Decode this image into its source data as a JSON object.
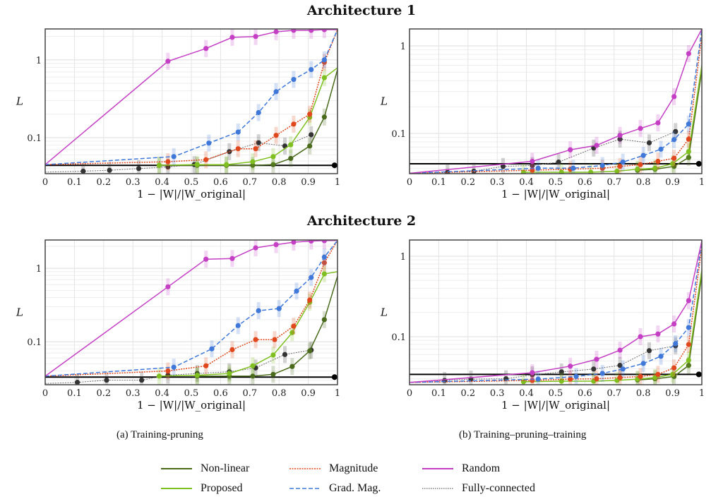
{
  "figure": {
    "row_titles": [
      "Architecture 1",
      "Architecture 2"
    ],
    "captions": [
      "(a) Training-pruning",
      "(b) Training–pruning–training"
    ],
    "legend": [
      {
        "name": "Non-linear",
        "color": "#4a6b1c",
        "dash": "solid"
      },
      {
        "name": "Magnitude",
        "color": "#e0471c",
        "dash": "dotted"
      },
      {
        "name": "Random",
        "color": "#c43fc4",
        "dash": "solid"
      },
      {
        "name": "Proposed",
        "color": "#7fbf1f",
        "dash": "solid"
      },
      {
        "name": "Grad. Mag.",
        "color": "#3f78d8",
        "dash": "dashed"
      },
      {
        "name": "Fully-connected",
        "color": "#333333",
        "dash": "dotted"
      }
    ],
    "baseline_color": "#000000"
  },
  "chart_data": [
    {
      "id": "arch1-training-pruning",
      "type": "line",
      "title": "Architecture 1 – (a) Training-pruning",
      "xlabel": "1 − |W|/|W_original|",
      "ylabel": "L",
      "xlim": [
        0,
        1
      ],
      "ylim": [
        0.0344,
        2.5
      ],
      "yscale": "log",
      "xticks": [
        "0",
        "0.1",
        "0.2",
        "0.3",
        "0.4",
        "0.5",
        "0.6",
        "0.7",
        "0.8",
        "0.9",
        "1"
      ],
      "yticks": [
        "0.1",
        "1"
      ],
      "grid": true,
      "baseline": 0.044,
      "series": [
        {
          "name": "Random",
          "x": [
            0,
            0.42,
            0.55,
            0.64,
            0.72,
            0.79,
            0.85,
            0.91,
            0.955,
            1
          ],
          "y": [
            0.045,
            0.96,
            1.4,
            1.95,
            2.0,
            2.3,
            2.4,
            2.4,
            2.45,
            2.45
          ]
        },
        {
          "name": "Grad. Mag.",
          "x": [
            0,
            0.44,
            0.56,
            0.66,
            0.73,
            0.79,
            0.85,
            0.91,
            0.955,
            1
          ],
          "y": [
            0.045,
            0.057,
            0.085,
            0.118,
            0.21,
            0.39,
            0.56,
            0.75,
            1.0,
            2.45
          ]
        },
        {
          "name": "Magnitude",
          "x": [
            0,
            0.42,
            0.55,
            0.66,
            0.72,
            0.79,
            0.85,
            0.905,
            0.955,
            1
          ],
          "y": [
            0.045,
            0.049,
            0.052,
            0.072,
            0.072,
            0.107,
            0.149,
            0.2,
            0.93,
            2.45
          ]
        },
        {
          "name": "Proposed",
          "x": [
            0.39,
            0.52,
            0.62,
            0.71,
            0.78,
            0.84,
            0.905,
            0.955,
            1
          ],
          "y": [
            0.044,
            0.045,
            0.045,
            0.049,
            0.057,
            0.081,
            0.183,
            0.59,
            0.79
          ]
        },
        {
          "name": "Non-linear",
          "x": [
            0.39,
            0.52,
            0.62,
            0.71,
            0.78,
            0.84,
            0.905,
            0.955,
            1
          ],
          "y": [
            0.044,
            0.044,
            0.044,
            0.044,
            0.045,
            0.054,
            0.078,
            0.184,
            0.75
          ]
        },
        {
          "name": "Fully-connected",
          "x": [
            0,
            0.13,
            0.22,
            0.32,
            0.42,
            0.51,
            0.63,
            0.73,
            0.82,
            0.91
          ],
          "y": [
            0.036,
            0.037,
            0.038,
            0.04,
            0.042,
            0.045,
            0.066,
            0.086,
            0.078,
            0.109
          ]
        }
      ]
    },
    {
      "id": "arch1-training-pruning-training",
      "type": "line",
      "title": "Architecture 1 – (b) Training–pruning–training",
      "xlabel": "1 − |W|/|W_original|",
      "ylabel": "L",
      "xlim": [
        0,
        1
      ],
      "ylim": [
        0.0347,
        1.56
      ],
      "yscale": "log",
      "xticks": [
        "0",
        "0.1",
        "0.2",
        "0.3",
        "0.4",
        "0.5",
        "0.6",
        "0.7",
        "0.8",
        "0.9",
        "1"
      ],
      "yticks": [
        "0.1",
        "1"
      ],
      "grid": true,
      "baseline": 0.045,
      "series": [
        {
          "name": "Random",
          "x": [
            0,
            0.42,
            0.55,
            0.64,
            0.72,
            0.79,
            0.85,
            0.905,
            0.955,
            1
          ],
          "y": [
            0.035,
            0.048,
            0.065,
            0.073,
            0.095,
            0.114,
            0.132,
            0.263,
            0.815,
            1.55
          ]
        },
        {
          "name": "Grad. Mag.",
          "x": [
            0,
            0.44,
            0.56,
            0.66,
            0.73,
            0.8,
            0.86,
            0.905,
            0.955,
            1
          ],
          "y": [
            0.035,
            0.04,
            0.04,
            0.043,
            0.047,
            0.056,
            0.066,
            0.085,
            0.128,
            1.55
          ]
        },
        {
          "name": "Magnitude",
          "x": [
            0,
            0.42,
            0.55,
            0.66,
            0.72,
            0.79,
            0.85,
            0.905,
            0.955,
            1
          ],
          "y": [
            0.035,
            0.038,
            0.039,
            0.04,
            0.042,
            0.044,
            0.048,
            0.052,
            0.086,
            1.3
          ]
        },
        {
          "name": "Proposed",
          "x": [
            0.39,
            0.52,
            0.62,
            0.71,
            0.78,
            0.84,
            0.9,
            0.955,
            1
          ],
          "y": [
            0.036,
            0.036,
            0.036,
            0.037,
            0.039,
            0.04,
            0.045,
            0.062,
            0.6
          ]
        },
        {
          "name": "Non-linear",
          "x": [
            0.78,
            0.84,
            0.905,
            0.955,
            1
          ],
          "y": [
            0.038,
            0.039,
            0.042,
            0.053,
            0.52
          ]
        },
        {
          "name": "Fully-connected",
          "x": [
            0,
            0.13,
            0.22,
            0.32,
            0.42,
            0.51,
            0.63,
            0.72,
            0.82,
            0.91
          ],
          "y": [
            0.035,
            0.036,
            0.037,
            0.042,
            0.043,
            0.047,
            0.068,
            0.086,
            0.078,
            0.105
          ]
        }
      ]
    },
    {
      "id": "arch2-training-pruning",
      "type": "line",
      "title": "Architecture 2 – (a) Training-pruning",
      "xlabel": "1 − |W|/|W_original|",
      "ylabel": "L",
      "xlim": [
        0,
        1
      ],
      "ylim": [
        0.026,
        2.43
      ],
      "yscale": "log",
      "xticks": [
        "0",
        "0.1",
        "0.2",
        "0.3",
        "0.4",
        "0.5",
        "0.6",
        "0.7",
        "0.8",
        "0.9",
        "1"
      ],
      "yticks": [
        "0.1",
        "1"
      ],
      "grid": true,
      "baseline": 0.033,
      "series": [
        {
          "name": "Random",
          "x": [
            0,
            0.42,
            0.55,
            0.64,
            0.72,
            0.79,
            0.85,
            0.91,
            0.955,
            1
          ],
          "y": [
            0.034,
            0.56,
            1.33,
            1.36,
            1.9,
            2.1,
            2.27,
            2.35,
            2.38,
            2.4
          ]
        },
        {
          "name": "Grad. Mag.",
          "x": [
            0,
            0.44,
            0.57,
            0.66,
            0.73,
            0.8,
            0.86,
            0.91,
            0.955,
            1
          ],
          "y": [
            0.034,
            0.045,
            0.08,
            0.166,
            0.265,
            0.283,
            0.49,
            0.75,
            1.42,
            2.4
          ]
        },
        {
          "name": "Magnitude",
          "x": [
            0,
            0.42,
            0.55,
            0.64,
            0.72,
            0.785,
            0.85,
            0.905,
            0.955,
            1
          ],
          "y": [
            0.034,
            0.04,
            0.047,
            0.078,
            0.107,
            0.107,
            0.163,
            0.37,
            1.19,
            2.4
          ]
        },
        {
          "name": "Proposed",
          "x": [
            0.39,
            0.52,
            0.63,
            0.71,
            0.78,
            0.845,
            0.905,
            0.955,
            1
          ],
          "y": [
            0.034,
            0.035,
            0.037,
            0.047,
            0.066,
            0.133,
            0.345,
            0.84,
            0.9
          ]
        },
        {
          "name": "Non-linear",
          "x": [
            0.52,
            0.63,
            0.71,
            0.78,
            0.845,
            0.905,
            0.955,
            1
          ],
          "y": [
            0.034,
            0.034,
            0.034,
            0.036,
            0.046,
            0.075,
            0.2,
            0.78
          ]
        },
        {
          "name": "Fully-connected",
          "x": [
            0,
            0.11,
            0.21,
            0.33,
            0.42,
            0.52,
            0.63,
            0.72,
            0.82,
            0.91
          ],
          "y": [
            0.027,
            0.028,
            0.03,
            0.03,
            0.035,
            0.037,
            0.039,
            0.044,
            0.067,
            0.077
          ]
        }
      ]
    },
    {
      "id": "arch2-training-pruning-training",
      "type": "line",
      "title": "Architecture 2 – (b) Training–pruning–training",
      "xlabel": "1 − |W|/|W_original|",
      "ylabel": "L",
      "xlim": [
        0,
        1
      ],
      "ylim": [
        0.0253,
        1.59
      ],
      "yscale": "log",
      "xticks": [
        "0",
        "0.1",
        "0.2",
        "0.3",
        "0.4",
        "0.5",
        "0.6",
        "0.7",
        "0.8",
        "0.9",
        "1"
      ],
      "yticks": [
        "0.1",
        "1"
      ],
      "grid": true,
      "baseline": 0.034,
      "series": [
        {
          "name": "Random",
          "x": [
            0,
            0.42,
            0.55,
            0.64,
            0.72,
            0.79,
            0.85,
            0.905,
            0.955,
            1
          ],
          "y": [
            0.027,
            0.0357,
            0.043,
            0.0524,
            0.068,
            0.1,
            0.108,
            0.144,
            0.28,
            1.55
          ]
        },
        {
          "name": "Grad. Mag.",
          "x": [
            0,
            0.44,
            0.57,
            0.66,
            0.73,
            0.8,
            0.86,
            0.91,
            0.955,
            1
          ],
          "y": [
            0.027,
            0.0297,
            0.032,
            0.035,
            0.0396,
            0.0465,
            0.057,
            0.082,
            0.13,
            1.5
          ]
        },
        {
          "name": "Magnitude",
          "x": [
            0,
            0.42,
            0.55,
            0.64,
            0.72,
            0.79,
            0.85,
            0.905,
            0.955,
            1
          ],
          "y": [
            0.027,
            0.0286,
            0.0297,
            0.03,
            0.031,
            0.032,
            0.034,
            0.041,
            0.08,
            1.3
          ]
        },
        {
          "name": "Proposed",
          "x": [
            0.39,
            0.52,
            0.63,
            0.71,
            0.78,
            0.84,
            0.9,
            0.955,
            1
          ],
          "y": [
            0.0275,
            0.028,
            0.028,
            0.0286,
            0.0297,
            0.031,
            0.034,
            0.051,
            0.68
          ]
        },
        {
          "name": "Non-linear",
          "x": [
            0.78,
            0.84,
            0.905,
            0.955,
            1
          ],
          "y": [
            0.029,
            0.03,
            0.032,
            0.044,
            0.58
          ]
        },
        {
          "name": "Fully-connected",
          "x": [
            0,
            0.12,
            0.21,
            0.33,
            0.42,
            0.52,
            0.63,
            0.72,
            0.82,
            0.91
          ],
          "y": [
            0.027,
            0.0286,
            0.0297,
            0.03,
            0.0336,
            0.0365,
            0.0396,
            0.044,
            0.067,
            0.077
          ]
        }
      ]
    }
  ]
}
